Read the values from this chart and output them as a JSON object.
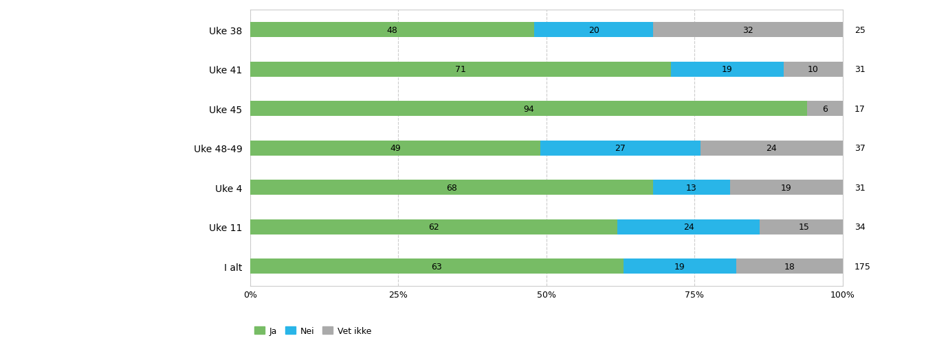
{
  "categories": [
    "Uke 38",
    "Uke 41",
    "Uke 45",
    "Uke 48-49",
    "Uke 4",
    "Uke 11",
    "I alt"
  ],
  "ja": [
    48,
    71,
    94,
    49,
    68,
    62,
    63
  ],
  "nei": [
    20,
    19,
    0,
    27,
    13,
    24,
    19
  ],
  "vet_ikke": [
    32,
    10,
    6,
    24,
    19,
    15,
    18
  ],
  "n_values": [
    25,
    31,
    17,
    37,
    31,
    34,
    175
  ],
  "colors": {
    "ja": "#77bc65",
    "nei": "#29b5e8",
    "vet_ikke": "#aaaaaa"
  },
  "legend_labels": [
    "Ja",
    "Nei",
    "Vet ikke"
  ],
  "x_ticks": [
    0,
    25,
    50,
    75,
    100
  ],
  "x_tick_labels": [
    "0%",
    "25%",
    "50%",
    "75%",
    "100%"
  ],
  "background_color": "#ffffff",
  "grid_color": "#cccccc",
  "bar_height": 0.38,
  "figsize": [
    13.47,
    5.1
  ],
  "dpi": 100
}
